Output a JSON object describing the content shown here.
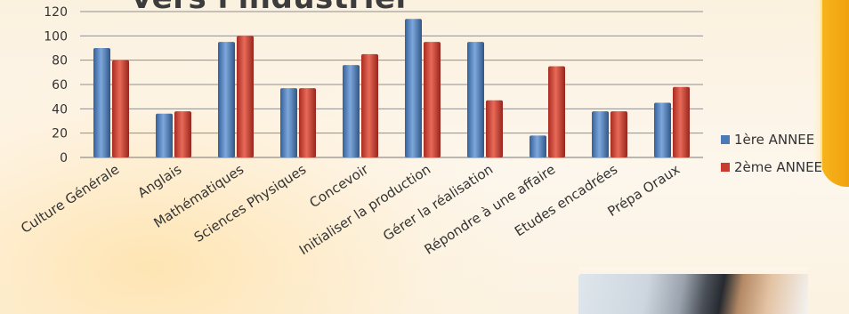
{
  "header": {
    "title": "vers l'industriel"
  },
  "chart_data": {
    "type": "bar",
    "title": "",
    "xlabel": "",
    "ylabel": "",
    "ylim": [
      0,
      120
    ],
    "yticks": [
      0,
      20,
      40,
      60,
      80,
      100,
      120
    ],
    "grid": true,
    "legend_position": "right",
    "categories": [
      "Culture Générale",
      "Anglais",
      "Mathématiques",
      "Sciences Physiques",
      "Concevoir",
      "Initialiser la production",
      "Gérer la réalisation",
      "Répondre à une affaire",
      "Etudes encadrées",
      "Prépa Oraux"
    ],
    "series": [
      {
        "name": "1ère ANNEE",
        "color": "#4a7ab8",
        "values": [
          90,
          36,
          95,
          57,
          76,
          114,
          95,
          18,
          38,
          45
        ]
      },
      {
        "name": "2ème ANNEE",
        "color": "#c83b2f",
        "values": [
          80,
          38,
          100,
          57,
          85,
          95,
          47,
          75,
          38,
          58
        ]
      }
    ]
  }
}
